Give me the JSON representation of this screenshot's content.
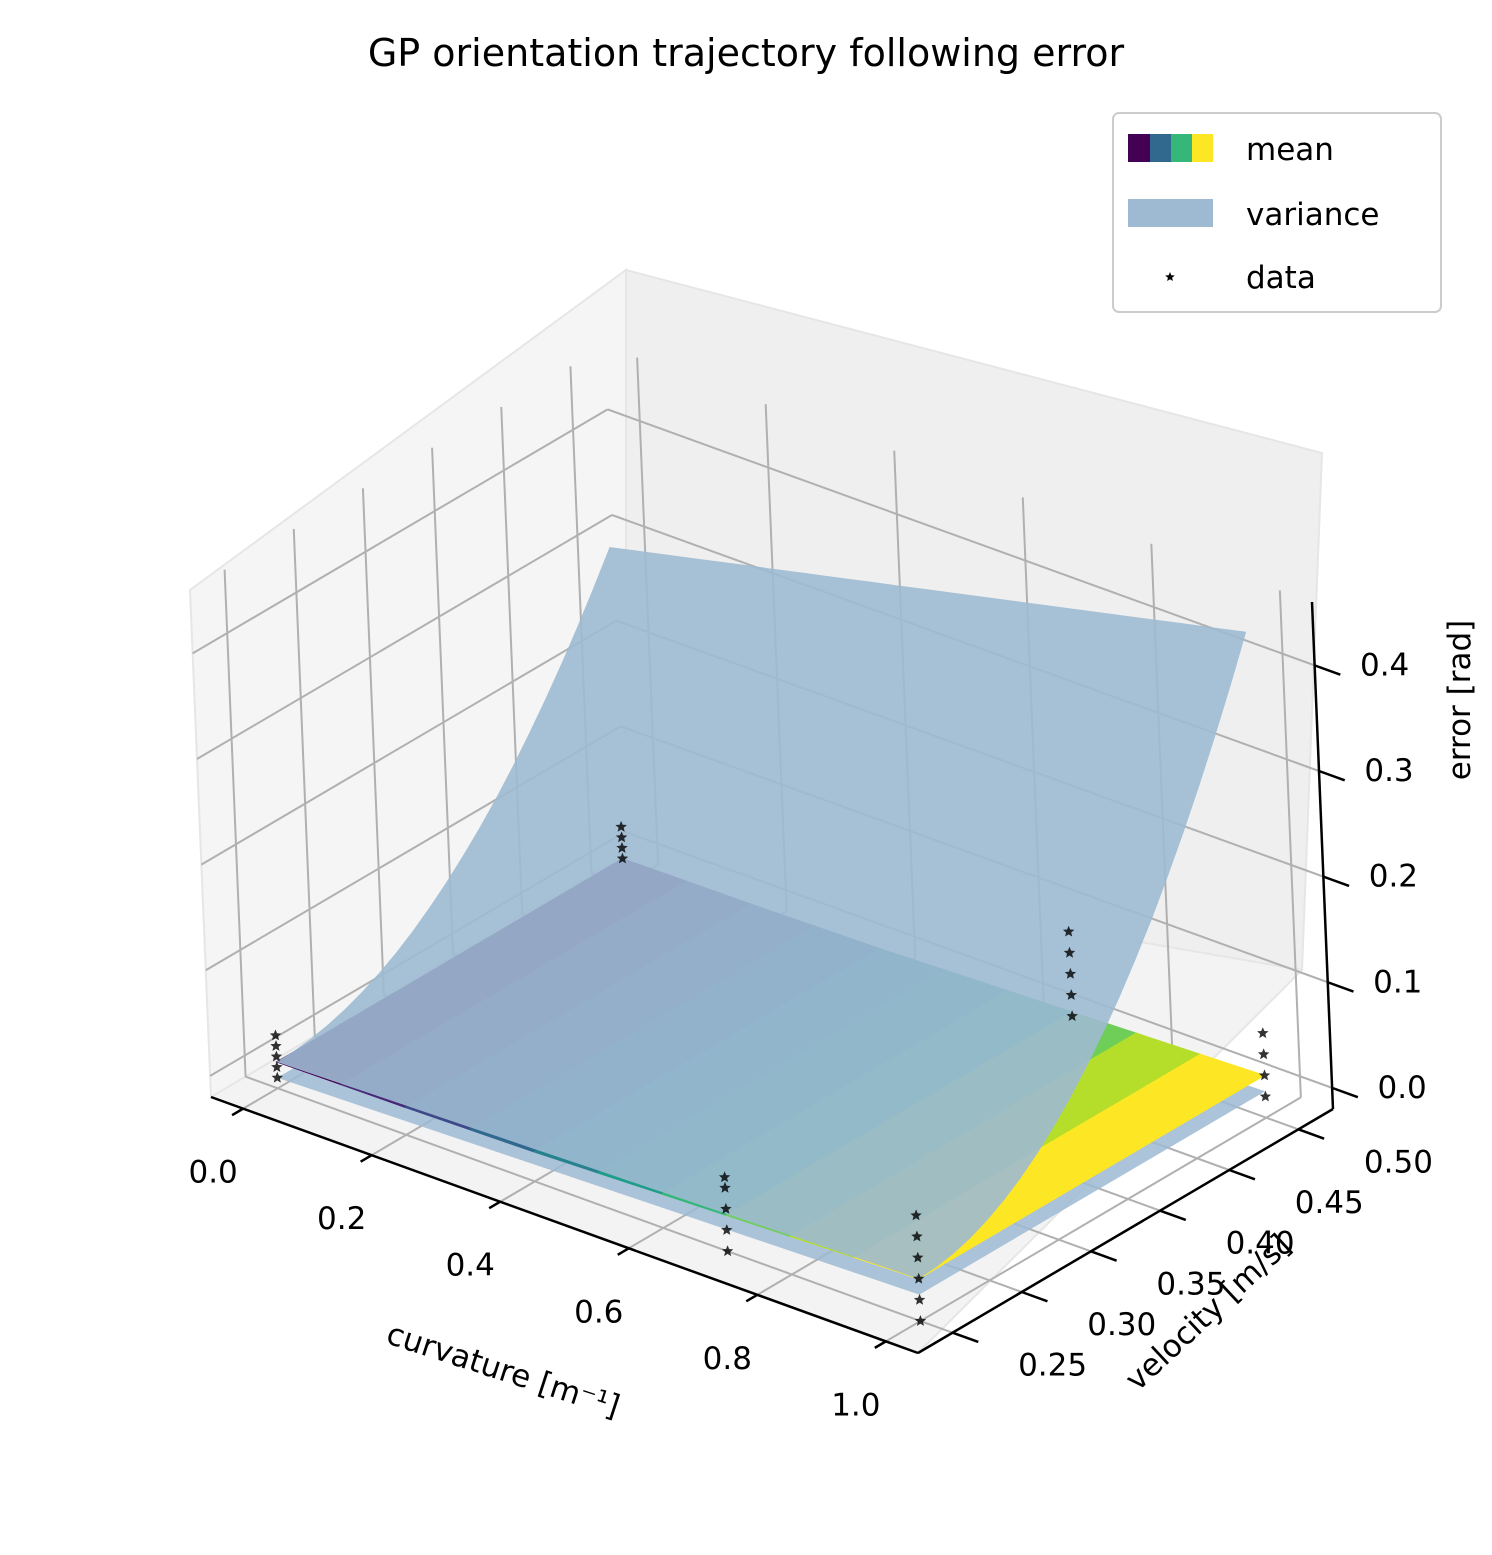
{
  "chart_data": {
    "type": "surface3d",
    "title": "GP orientation trajectory following error",
    "xlabel": "curvature [m⁻¹]",
    "ylabel": "velocity [m/s]",
    "zlabel": "error [rad]",
    "xlim": [
      -0.05,
      1.05
    ],
    "ylim": [
      0.225,
      0.525
    ],
    "zlim": [
      -0.02,
      0.46
    ],
    "xticks": [
      "0.0",
      "0.2",
      "0.4",
      "0.6",
      "0.8",
      "1.0"
    ],
    "yticks": [
      "0.25",
      "0.30",
      "0.35",
      "0.40",
      "0.45",
      "0.50"
    ],
    "zticks": [
      "0.0",
      "0.1",
      "0.2",
      "0.3",
      "0.4"
    ],
    "grid": true,
    "legend_position": "top-right",
    "legend": [
      {
        "label": "mean",
        "swatch": "viridis"
      },
      {
        "label": "variance",
        "color": "#9dbad2"
      },
      {
        "label": "data",
        "marker": "star",
        "color": "#000000"
      }
    ],
    "mean_surface": {
      "x": [
        0.0,
        0.2,
        0.4,
        0.6,
        0.8,
        1.0
      ],
      "y": [
        0.25,
        0.3,
        0.35,
        0.4,
        0.45,
        0.5
      ],
      "z_by_x": [
        0.005,
        0.006,
        0.008,
        0.012,
        0.016,
        0.02
      ],
      "colormap": [
        "#440154",
        "#482878",
        "#3e4989",
        "#31688e",
        "#26828e",
        "#1f9e89",
        "#35b779",
        "#6ece58",
        "#b5de2b",
        "#fde725"
      ]
    },
    "variance_surface": {
      "x": [
        0.0,
        0.2,
        0.4,
        0.6,
        0.8,
        1.0
      ],
      "y": [
        0.25,
        0.3,
        0.35,
        0.4,
        0.45,
        0.5
      ],
      "upper_corners": {
        "x0_y025": 0.005,
        "x1_y025": 0.02,
        "x0_y050": 0.3,
        "x1_y050": 0.44
      },
      "color": "#9dbad2"
    },
    "data_points": [
      {
        "x": 0.0,
        "y": 0.25,
        "z": [
          -0.01,
          0.0,
          0.01,
          0.02,
          0.03
        ]
      },
      {
        "x": 0.0,
        "y": 0.5,
        "z": [
          0.005,
          0.015,
          0.025,
          0.035
        ]
      },
      {
        "x": 0.7,
        "y": 0.25,
        "z": [
          -0.02,
          0.0,
          0.02,
          0.04,
          0.05
        ]
      },
      {
        "x": 0.7,
        "y": 0.5,
        "z": [
          0.01,
          0.03,
          0.05,
          0.07,
          0.09
        ]
      },
      {
        "x": 1.0,
        "y": 0.25,
        "z": [
          -0.02,
          0.0,
          0.02,
          0.04,
          0.06,
          0.08
        ]
      },
      {
        "x": 1.0,
        "y": 0.5,
        "z": [
          0.0,
          0.02,
          0.04,
          0.06
        ]
      }
    ]
  }
}
